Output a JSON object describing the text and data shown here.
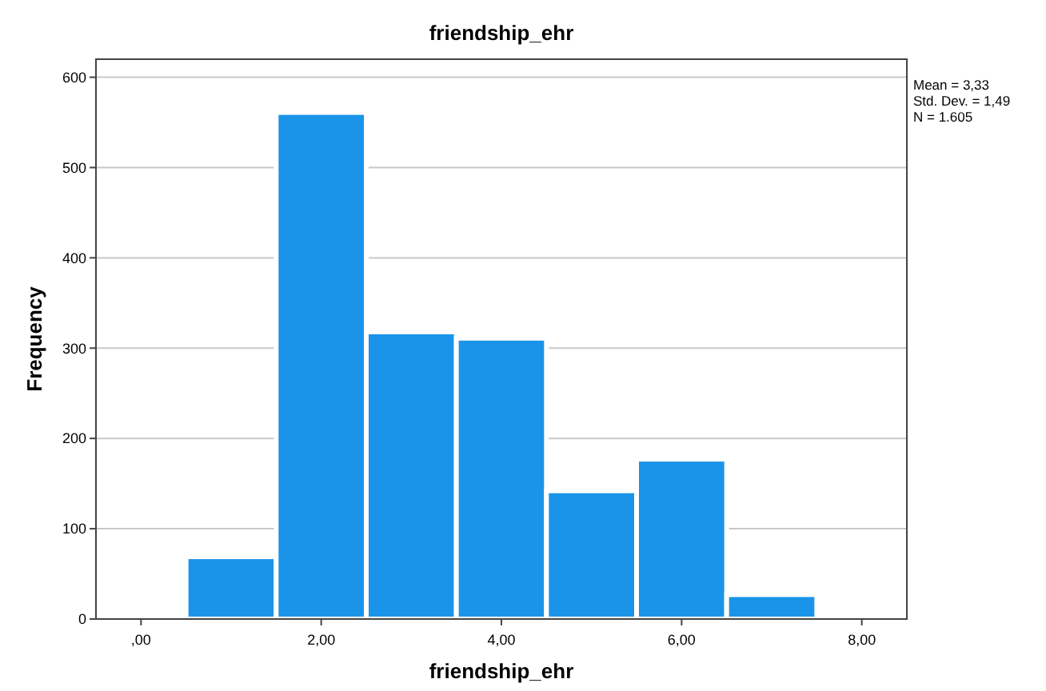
{
  "chart_data": {
    "type": "histogram",
    "title": "friendship_ehr",
    "xlabel": "friendship_ehr",
    "ylabel": "Frequency",
    "bins": [
      0.5,
      1.5,
      2.5,
      3.5,
      4.5,
      5.5,
      6.5,
      7.5
    ],
    "values": [
      69,
      561,
      318,
      311,
      142,
      177,
      27
    ],
    "color": "#1a94e8",
    "xlim": [
      -0.5,
      8.5
    ],
    "xticks": [
      {
        "value": 0,
        "label": ",00"
      },
      {
        "value": 2,
        "label": "2,00"
      },
      {
        "value": 4,
        "label": "4,00"
      },
      {
        "value": 6,
        "label": "6,00"
      },
      {
        "value": 8,
        "label": "8,00"
      }
    ],
    "ylim": [
      0,
      620
    ],
    "yticks": [
      0,
      100,
      200,
      300,
      400,
      500,
      600
    ],
    "grid": "y",
    "annotations": [
      "Mean = 3,33",
      "Std. Dev. = 1,49",
      "N = 1.605"
    ]
  }
}
